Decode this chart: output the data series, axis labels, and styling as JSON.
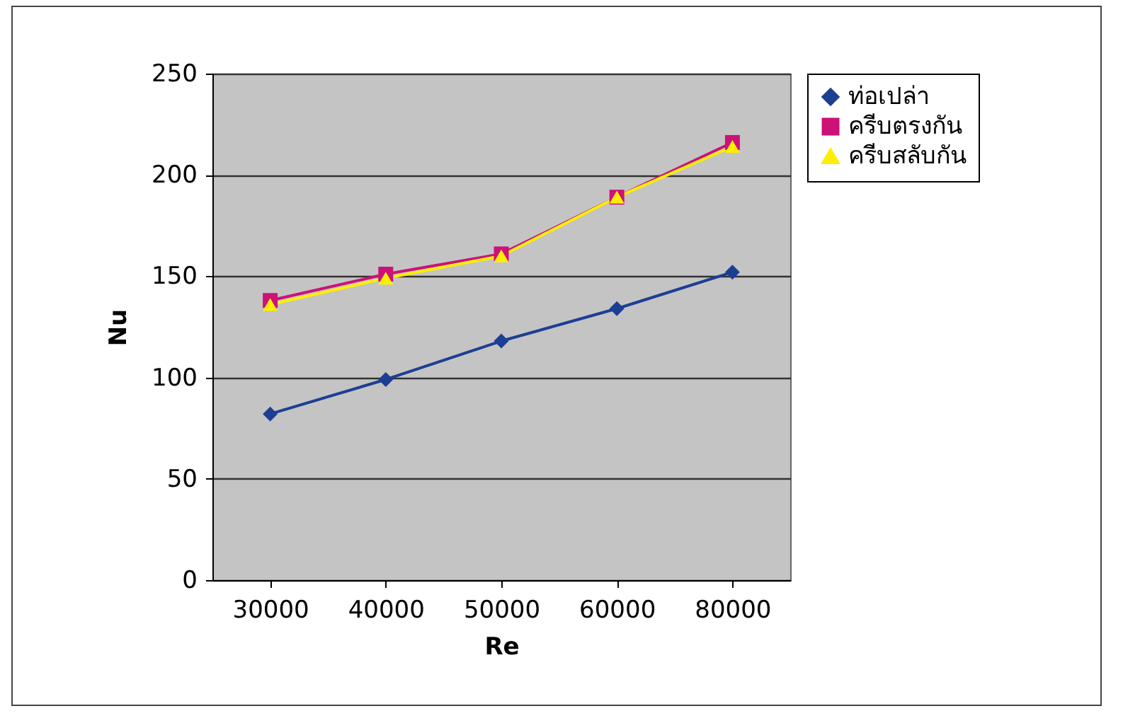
{
  "chart_data": {
    "type": "line",
    "xlabel": "Re",
    "ylabel": "Nu",
    "categories": [
      "30000",
      "40000",
      "50000",
      "60000",
      "80000"
    ],
    "series": [
      {
        "name": "ท่อเปล่า",
        "color": "#1c3f94",
        "marker": "diamond",
        "values": [
          82,
          99,
          118,
          134,
          152
        ]
      },
      {
        "name": "ครีบตรงกัน",
        "color": "#cc1177",
        "marker": "square",
        "values": [
          138,
          151,
          161,
          189,
          216
        ]
      },
      {
        "name": "ครีบสลับกัน",
        "color": "#ffee00",
        "marker": "triangle",
        "values": [
          136,
          149,
          160,
          189,
          214
        ]
      }
    ],
    "ylim": [
      0,
      250
    ],
    "yticks": [
      0,
      50,
      100,
      150,
      200,
      250
    ],
    "grid": "y",
    "legend": "right"
  }
}
